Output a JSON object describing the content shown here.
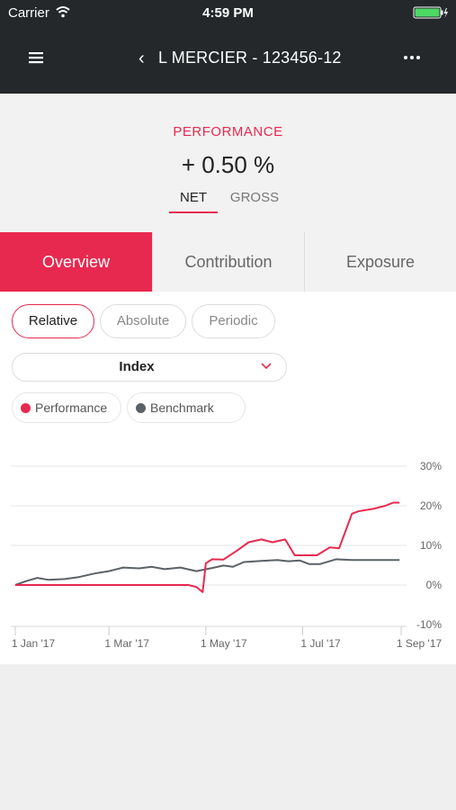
{
  "status_bar": {
    "carrier": "Carrier",
    "time": "4:59 PM"
  },
  "nav": {
    "title": "L MERCIER - 123456-12",
    "back_icon": "chevron-left-icon",
    "menu_icon": "hamburger-icon",
    "more_icon": "more-dots-icon"
  },
  "performance": {
    "label": "PERFORMANCE",
    "value": "+ 0.50 %",
    "tabs": [
      "NET",
      "GROSS"
    ],
    "active_tab": "NET"
  },
  "main_tabs": [
    "Overview",
    "Contribution",
    "Exposure"
  ],
  "active_main_tab": "Overview",
  "modes": [
    "Relative",
    "Absolute",
    "Periodic"
  ],
  "active_mode": "Relative",
  "dropdown": {
    "selected": "Index"
  },
  "legend": [
    {
      "label": "Performance",
      "color": "#e8294f"
    },
    {
      "label": "Benchmark",
      "color": "#5a6266"
    }
  ],
  "colors": {
    "accent": "#e8294f",
    "header_bg": "#24282b",
    "benchmark": "#5a6266"
  },
  "chart_data": {
    "type": "line",
    "x_ticks": [
      "1 Jan '17",
      "1 Mar '17",
      "1 May '17",
      "1 Jul '17",
      "1 Sep '17"
    ],
    "y_ticks": [
      "30%",
      "20%",
      "10%",
      "0%",
      "-10%"
    ],
    "ylim": [
      -10,
      30
    ],
    "xlim": [
      "2017-01-01",
      "2017-09-01"
    ],
    "series": [
      {
        "name": "Performance",
        "color": "#e8294f",
        "x": [
          "2017-01-01",
          "2017-04-20",
          "2017-04-25",
          "2017-04-29",
          "2017-05-01",
          "2017-05-05",
          "2017-05-12",
          "2017-05-20",
          "2017-05-28",
          "2017-06-05",
          "2017-06-12",
          "2017-06-20",
          "2017-06-26",
          "2017-07-01",
          "2017-07-10",
          "2017-07-18",
          "2017-07-24",
          "2017-08-01",
          "2017-08-05",
          "2017-08-15",
          "2017-08-22",
          "2017-08-27",
          "2017-08-31"
        ],
        "values": [
          0,
          0,
          -0.5,
          -1.8,
          5.5,
          6.5,
          6.4,
          8.5,
          10.8,
          11.5,
          10.8,
          11.5,
          7.5,
          7.5,
          7.5,
          9.5,
          9.3,
          18,
          18.6,
          19.3,
          20,
          20.8,
          20.8
        ]
      },
      {
        "name": "Benchmark",
        "color": "#5a6266",
        "x": [
          "2017-01-01",
          "2017-01-08",
          "2017-01-15",
          "2017-01-22",
          "2017-02-01",
          "2017-02-10",
          "2017-02-20",
          "2017-03-01",
          "2017-03-10",
          "2017-03-20",
          "2017-03-28",
          "2017-04-05",
          "2017-04-15",
          "2017-04-25",
          "2017-05-05",
          "2017-05-12",
          "2017-05-18",
          "2017-05-25",
          "2017-06-05",
          "2017-06-15",
          "2017-06-22",
          "2017-06-29",
          "2017-07-05",
          "2017-07-12",
          "2017-07-22",
          "2017-08-01",
          "2017-08-10",
          "2017-08-20",
          "2017-08-31"
        ],
        "values": [
          0,
          1,
          1.8,
          1.3,
          1.5,
          2,
          2.9,
          3.5,
          4.4,
          4.2,
          4.6,
          4,
          4.4,
          3.5,
          4.3,
          4.9,
          4.6,
          5.8,
          6.1,
          6.3,
          6,
          6.2,
          5.3,
          5.3,
          6.5,
          6.3,
          6.3,
          6.3,
          6.3
        ]
      }
    ]
  }
}
